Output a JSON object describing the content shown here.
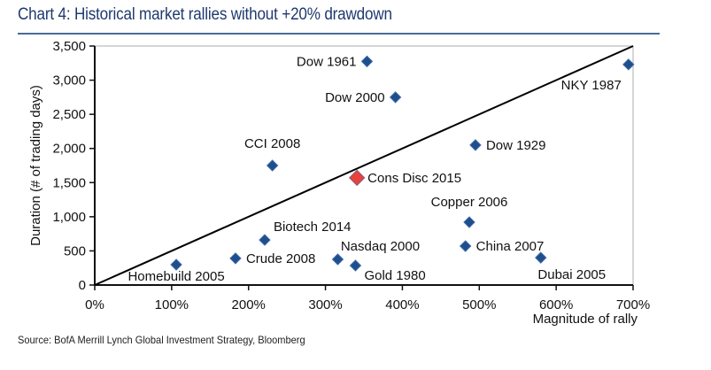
{
  "title": "Chart 4: Historical market rallies without +20% drawdown",
  "source": "Source: BofA Merrill Lynch Global Investment Strategy, Bloomberg",
  "colors": {
    "title": "#1f3a6e",
    "point": "#1f4e8c",
    "highlight": "#e8423a",
    "highlight_label": "#e03c36"
  },
  "chart_data": {
    "type": "scatter",
    "title": "Chart 4: Historical market rallies without +20% drawdown",
    "xlabel": "Magnitude of rally",
    "ylabel": "Duration (# of trading days)",
    "xlim": [
      0,
      700
    ],
    "ylim": [
      0,
      3500
    ],
    "x_unit": "%",
    "x_ticks": [
      0,
      100,
      200,
      300,
      400,
      500,
      600,
      700
    ],
    "x_tick_labels": [
      "0%",
      "100%",
      "200%",
      "300%",
      "400%",
      "500%",
      "600%",
      "700%"
    ],
    "y_ticks": [
      0,
      500,
      1000,
      1500,
      2000,
      2500,
      3000,
      3500
    ],
    "y_tick_labels": [
      "0",
      "500",
      "1,000",
      "1,500",
      "2,000",
      "2,500",
      "3,000",
      "3,500"
    ],
    "grid": false,
    "trendline": {
      "from": [
        0,
        0
      ],
      "to": [
        700,
        3500
      ]
    },
    "points": [
      {
        "label": "Dow 1961",
        "x": 354,
        "y": 3275,
        "label_pos": "left"
      },
      {
        "label": "Dow 2000",
        "x": 391,
        "y": 2750,
        "label_pos": "left"
      },
      {
        "label": "NKY 1987",
        "x": 694,
        "y": 3230,
        "label_pos": "below-left"
      },
      {
        "label": "Dow 1929",
        "x": 495,
        "y": 2050,
        "label_pos": "right"
      },
      {
        "label": "CCI 2008",
        "x": 231,
        "y": 1750,
        "label_pos": "above"
      },
      {
        "label": "Cons Disc 2015",
        "x": 341,
        "y": 1570,
        "label_pos": "right",
        "highlight": true
      },
      {
        "label": "Copper 2006",
        "x": 487,
        "y": 920,
        "label_pos": "above"
      },
      {
        "label": "Biotech 2014",
        "x": 221,
        "y": 660,
        "label_pos": "above-right"
      },
      {
        "label": "China 2007",
        "x": 482,
        "y": 570,
        "label_pos": "right"
      },
      {
        "label": "Crude 2008",
        "x": 183,
        "y": 390,
        "label_pos": "right"
      },
      {
        "label": "Nasdaq 2000",
        "x": 316,
        "y": 376,
        "label_pos": "above"
      },
      {
        "label": "Dubai 2005",
        "x": 580,
        "y": 400,
        "label_pos": "below"
      },
      {
        "label": "Homebuild 2005",
        "x": 106,
        "y": 298,
        "label_pos": "below"
      },
      {
        "label": "Gold 1980",
        "x": 339,
        "y": 285,
        "label_pos": "below-right"
      }
    ]
  }
}
